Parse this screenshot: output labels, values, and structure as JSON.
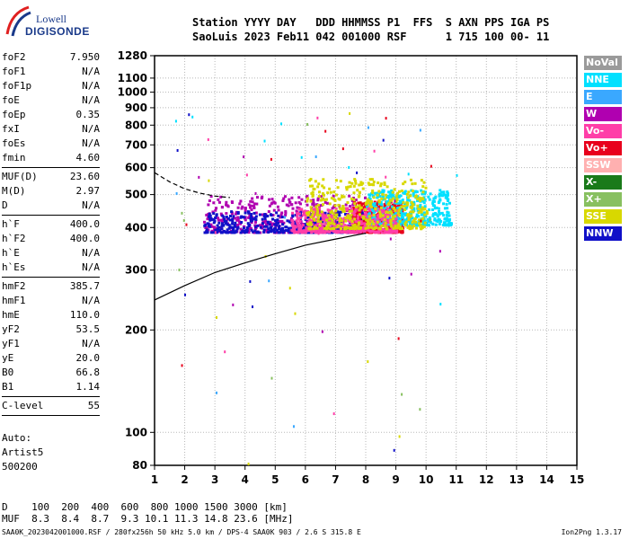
{
  "logo": {
    "line1": "Lowell",
    "line2": "DIGISONDE"
  },
  "header": {
    "row1": "Station YYYY DAY   DDD HHMMSS P1  FFS  S AXN PPS IGA PS",
    "row2": "SaoLuis 2023 Feb11 042 001000 RSF      1 715 100 00- 11"
  },
  "params": [
    {
      "label": "foF2",
      "value": "7.950"
    },
    {
      "label": "foF1",
      "value": "N/A"
    },
    {
      "label": "foF1p",
      "value": "N/A"
    },
    {
      "label": "foE",
      "value": "N/A"
    },
    {
      "label": "foEp",
      "value": "0.35"
    },
    {
      "label": "fxI",
      "value": "N/A"
    },
    {
      "label": "foEs",
      "value": "N/A"
    },
    {
      "label": "fmin",
      "value": "4.60"
    },
    {
      "sep": true
    },
    {
      "label": "MUF(D)",
      "value": "23.60"
    },
    {
      "label": "M(D)",
      "value": "2.97"
    },
    {
      "label": "D",
      "value": "N/A"
    },
    {
      "sep": true
    },
    {
      "label": "h`F",
      "value": "400.0"
    },
    {
      "label": "h`F2",
      "value": "400.0"
    },
    {
      "label": "h`E",
      "value": "N/A"
    },
    {
      "label": "h`Es",
      "value": "N/A"
    },
    {
      "sep": true
    },
    {
      "label": "hmF2",
      "value": "385.7"
    },
    {
      "label": "hmF1",
      "value": "N/A"
    },
    {
      "label": "hmE",
      "value": "110.0"
    },
    {
      "label": "yF2",
      "value": "53.5"
    },
    {
      "label": "yF1",
      "value": "N/A"
    },
    {
      "label": "yE",
      "value": "20.0"
    },
    {
      "label": "B0",
      "value": "66.8"
    },
    {
      "label": "B1",
      "value": "1.14"
    },
    {
      "sep": true
    },
    {
      "label": "C-level",
      "value": "55"
    },
    {
      "sep": true
    }
  ],
  "auto": {
    "line1": "Auto:",
    "line2": "Artist5",
    "line3": "500200"
  },
  "legend": [
    {
      "label": "NoVal",
      "color": "#9a9a9a"
    },
    {
      "label": "NNE",
      "color": "#00e0ff"
    },
    {
      "label": "E",
      "color": "#3aa8ff"
    },
    {
      "label": "W",
      "color": "#b000b0"
    },
    {
      "label": "Vo-",
      "color": "#ff3ea8"
    },
    {
      "label": "Vo+",
      "color": "#e8001c"
    },
    {
      "label": "SSW",
      "color": "#ffb0b0"
    },
    {
      "label": "X-",
      "color": "#1a7a1a"
    },
    {
      "label": "X+",
      "color": "#88c060"
    },
    {
      "label": "SSE",
      "color": "#d8d800"
    },
    {
      "label": "NNW",
      "color": "#1010c8"
    }
  ],
  "bottom": {
    "d_row": "D    100  200  400  600  800 1000 1500 3000 [km]",
    "muf_row": "MUF  8.3  8.4  8.7  9.3 10.1 11.3 14.8 23.6 [MHz]"
  },
  "footer": {
    "left": "SAA0K_2023042001000.RSF / 280fx256h 50 kHz 5.0 km / DPS-4 SAA0K 903 / 2.6 S 315.8 E",
    "right": "Ion2Png 1.3.17"
  },
  "chart_data": {
    "type": "scatter",
    "xlabel": "",
    "ylabel": "",
    "xlim": [
      1,
      15
    ],
    "ylim": [
      80,
      1280
    ],
    "x_ticks": [
      1,
      2,
      3,
      4,
      5,
      6,
      7,
      8,
      9,
      10,
      11,
      12,
      13,
      14,
      15
    ],
    "y_ticks": [
      80,
      100,
      200,
      300,
      400,
      500,
      600,
      700,
      800,
      900,
      1000,
      1100,
      1280
    ],
    "y_scale": "log",
    "grid": true,
    "series": [
      {
        "name": "trace-solid",
        "x": [
          1.0,
          2.0,
          3.0,
          4.0,
          5.0,
          6.0,
          7.0,
          8.0
        ],
        "y": [
          245,
          270,
          295,
          315,
          335,
          355,
          370,
          385
        ]
      },
      {
        "name": "trace-dashed",
        "x": [
          1.0,
          1.5,
          2.0,
          2.5,
          3.0,
          3.5
        ],
        "y": [
          580,
          545,
          520,
          505,
          495,
          490
        ]
      }
    ],
    "echo_clusters": [
      {
        "x_range": [
          2.6,
          8.0
        ],
        "h_range": [
          390,
          500
        ],
        "color": "#b000b0"
      },
      {
        "x_range": [
          2.6,
          8.0
        ],
        "h_range": [
          390,
          450
        ],
        "color": "#1010c8"
      },
      {
        "x_range": [
          7.5,
          9.2
        ],
        "h_range": [
          390,
          480
        ],
        "color": "#e8001c"
      },
      {
        "x_range": [
          8.0,
          10.8
        ],
        "h_range": [
          410,
          520
        ],
        "color": "#00e0ff"
      },
      {
        "x_range": [
          5.5,
          9.0
        ],
        "h_range": [
          390,
          460
        ],
        "color": "#ff3ea8"
      },
      {
        "x_range": [
          6.0,
          10.0
        ],
        "h_range": [
          400,
          560
        ],
        "color": "#d8d800"
      }
    ]
  }
}
